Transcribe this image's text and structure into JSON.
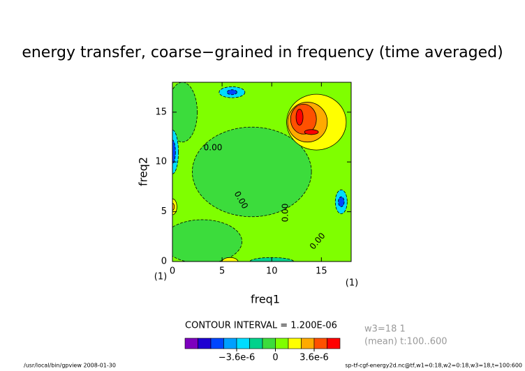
{
  "chart_data": {
    "type": "contour",
    "title": "energy transfer, coarse−grained in frequency (time averaged)",
    "xlabel": "freq1",
    "ylabel": "freq2",
    "x_unit": "(1)",
    "y_unit": "(1)",
    "xlim": [
      0,
      18
    ],
    "ylim": [
      0,
      18
    ],
    "xticks": [
      0,
      5,
      10,
      15
    ],
    "yticks": [
      0,
      5,
      10,
      15
    ],
    "background_value": 6e-07,
    "features": [
      {
        "x": 8,
        "y": 9,
        "rx": 6,
        "ry": 4.5,
        "value": -6e-07
      },
      {
        "x": 3,
        "y": 2,
        "rx": 4,
        "ry": 2.2,
        "value": -6e-07
      },
      {
        "x": 1,
        "y": 15,
        "rx": 1.5,
        "ry": 3,
        "value": -6e-07
      },
      {
        "x": 14.5,
        "y": 14,
        "rx": 3,
        "ry": 2.8,
        "value": 1.8e-06
      },
      {
        "x": 13.6,
        "y": 14,
        "rx": 2,
        "ry": 2,
        "value": 3e-06
      },
      {
        "x": 13.2,
        "y": 14.3,
        "rx": 1.3,
        "ry": 1.5,
        "value": 4.2e-06
      },
      {
        "x": 12.8,
        "y": 14.5,
        "rx": 0.35,
        "ry": 0.8,
        "value": 5.4e-06
      },
      {
        "x": 14,
        "y": 13,
        "rx": 0.7,
        "ry": 0.25,
        "value": 5.4e-06
      },
      {
        "x": 6,
        "y": 17,
        "rx": 1.3,
        "ry": 0.55,
        "value": -3e-06
      },
      {
        "x": 6,
        "y": 17,
        "rx": 0.5,
        "ry": 0.25,
        "value": -5.4e-06
      },
      {
        "x": 0,
        "y": 11,
        "rx": 0.6,
        "ry": 2.2,
        "value": -3e-06
      },
      {
        "x": 0,
        "y": 11,
        "rx": 0.3,
        "ry": 1.2,
        "value": -5.4e-06
      },
      {
        "x": 17,
        "y": 6,
        "rx": 0.6,
        "ry": 1.2,
        "value": -3e-06
      },
      {
        "x": 17,
        "y": 6,
        "rx": 0.3,
        "ry": 0.5,
        "value": -5.4e-06
      },
      {
        "x": 10,
        "y": 0,
        "rx": 2.2,
        "ry": 0.4,
        "value": -1.8e-06
      },
      {
        "x": 0,
        "y": 5.5,
        "rx": 0.45,
        "ry": 0.8,
        "value": 1.8e-06
      },
      {
        "x": 0,
        "y": 5.5,
        "rx": 0.2,
        "ry": 0.35,
        "value": 3e-06
      },
      {
        "x": 5.8,
        "y": 0,
        "rx": 0.8,
        "ry": 0.4,
        "value": 1.8e-06
      }
    ],
    "contour_labels": [
      "0.00",
      "0.00",
      "0.00",
      "0.00"
    ],
    "contour_interval_label": "CONTOUR INTERVAL = 1.200E-06",
    "levels": [
      -7.2e-06,
      -6e-06,
      -4.8e-06,
      -3.6e-06,
      -2.4e-06,
      -1.2e-06,
      0,
      1.2e-06,
      2.4e-06,
      3.6e-06,
      4.8e-06
    ],
    "colors": [
      "#7d00be",
      "#1e00d2",
      "#0046ff",
      "#00a0ff",
      "#00dcff",
      "#00d28c",
      "#3cdc3c",
      "#7fff00",
      "#ffff00",
      "#ffaa00",
      "#ff5000",
      "#ff0000"
    ],
    "colorbar_ticks": [
      {
        "value": -3.6e-06,
        "label": "−3.6e-6"
      },
      0,
      {
        "value": 3.6e-06,
        "label": "3.6e-6"
      }
    ],
    "info": [
      "w3=18 1",
      "(mean) t:100..600"
    ],
    "footer_left": "/usr/local/bin/gpview  2008-01-30",
    "footer_right": "sp-tf-cgf-energy2d.nc@tf,w1=0:18,w2=0:18,w3=18,t=100:600"
  }
}
